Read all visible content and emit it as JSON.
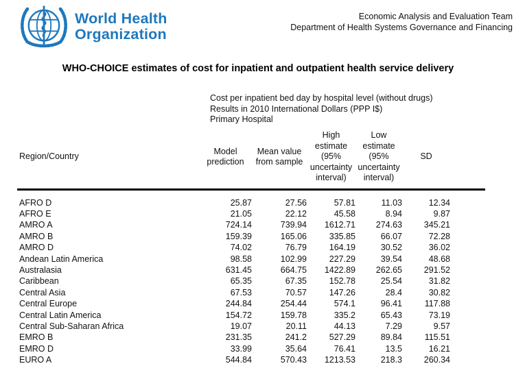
{
  "colors": {
    "who_blue": "#1e78bd",
    "text": "#111111"
  },
  "header": {
    "wordmark_line1": "World Health",
    "wordmark_line2": "Organization",
    "team_line1": "Economic Analysis and Evaluation Team",
    "team_line2": "Department of Health Systems Governance and Financing"
  },
  "title": "WHO-CHOICE estimates of cost for inpatient and outpatient health service delivery",
  "subtitle_lines": [
    "Cost per inpatient bed day by hospital level (without drugs)",
    "Results in 2010 International Dollars (PPP I$)",
    "Primary Hospital"
  ],
  "table": {
    "columns": [
      "Region/Country",
      "Model prediction",
      "Mean value from sample",
      "High estimate (95% uncertainty interval)",
      "Low estimate (95% uncertainty interval)",
      "SD"
    ],
    "rows": [
      {
        "region": "AFRO D",
        "values": [
          "25.87",
          "27.56",
          "57.81",
          "11.03",
          "12.34"
        ]
      },
      {
        "region": "AFRO E",
        "values": [
          "21.05",
          "22.12",
          "45.58",
          "8.94",
          "9.87"
        ]
      },
      {
        "region": "AMRO A",
        "values": [
          "724.14",
          "739.94",
          "1612.71",
          "274.63",
          "345.21"
        ]
      },
      {
        "region": "AMRO B",
        "values": [
          "159.39",
          "165.06",
          "335.85",
          "66.07",
          "72.28"
        ]
      },
      {
        "region": "AMRO D",
        "values": [
          "74.02",
          "76.79",
          "164.19",
          "30.52",
          "36.02"
        ]
      },
      {
        "region": "Andean Latin America",
        "values": [
          "98.58",
          "102.99",
          "227.29",
          "39.54",
          "48.68"
        ]
      },
      {
        "region": "Australasia",
        "values": [
          "631.45",
          "664.75",
          "1422.89",
          "262.65",
          "291.52"
        ]
      },
      {
        "region": "Caribbean",
        "values": [
          "65.35",
          "67.35",
          "152.78",
          "25.54",
          "31.82"
        ]
      },
      {
        "region": "Central Asia",
        "values": [
          "67.53",
          "70.57",
          "147.26",
          "28.4",
          "30.82"
        ]
      },
      {
        "region": "Central Europe",
        "values": [
          "244.84",
          "254.44",
          "574.1",
          "96.41",
          "117.88"
        ]
      },
      {
        "region": "Central Latin America",
        "values": [
          "154.72",
          "159.78",
          "335.2",
          "65.43",
          "73.19"
        ]
      },
      {
        "region": "Central Sub-Saharan Africa",
        "values": [
          "19.07",
          "20.11",
          "44.13",
          "7.29",
          "9.57"
        ]
      },
      {
        "region": "EMRO B",
        "values": [
          "231.35",
          "241.2",
          "527.29",
          "89.84",
          "115.51"
        ]
      },
      {
        "region": "EMRO D",
        "values": [
          "33.99",
          "35.64",
          "76.41",
          "13.5",
          "16.21"
        ]
      },
      {
        "region": "EURO A",
        "values": [
          "544.84",
          "570.43",
          "1213.53",
          "218.3",
          "260.34"
        ]
      }
    ]
  }
}
